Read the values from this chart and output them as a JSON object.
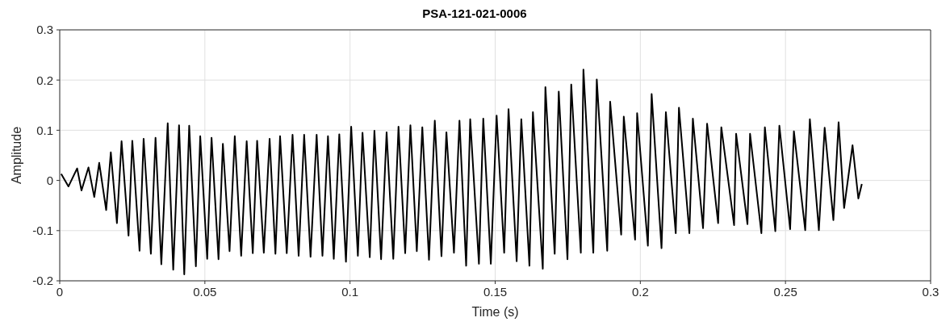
{
  "chart_data": {
    "type": "line",
    "title": "PSA-121-021-0006",
    "xlabel": "Time (s)",
    "ylabel": "Amplitude",
    "xlim": [
      0,
      0.3
    ],
    "xticks": [
      0,
      0.05,
      0.1,
      0.15,
      0.2,
      0.25,
      0.3
    ],
    "ylim": [
      -0.2,
      0.3
    ],
    "yticks": [
      -0.2,
      -0.1,
      0,
      0.1,
      0.2,
      0.3
    ],
    "grid": true,
    "marker": "none",
    "line_style": "solid",
    "series": [
      {
        "color": "#000000",
        "x": [
          0.0005,
          0.003,
          0.006,
          0.0075,
          0.0099,
          0.0119,
          0.0136,
          0.016,
          0.0176,
          0.0197,
          0.0213,
          0.0237,
          0.025,
          0.0275,
          0.0289,
          0.0314,
          0.033,
          0.035,
          0.0372,
          0.0391,
          0.0411,
          0.0429,
          0.0446,
          0.0469,
          0.0484,
          0.0508,
          0.0523,
          0.0547,
          0.0562,
          0.0585,
          0.0603,
          0.0625,
          0.0644,
          0.0665,
          0.068,
          0.0703,
          0.0723,
          0.0743,
          0.0759,
          0.0782,
          0.0802,
          0.0823,
          0.0842,
          0.0864,
          0.0885,
          0.0905,
          0.0924,
          0.0944,
          0.0963,
          0.0986,
          0.1004,
          0.1027,
          0.1043,
          0.1068,
          0.1084,
          0.1107,
          0.1126,
          0.1149,
          0.1167,
          0.119,
          0.1208,
          0.123,
          0.1249,
          0.1272,
          0.1292,
          0.1315,
          0.1332,
          0.1358,
          0.1377,
          0.14,
          0.1414,
          0.1444,
          0.1459,
          0.1485,
          0.1505,
          0.1531,
          0.1546,
          0.1574,
          0.159,
          0.1618,
          0.163,
          0.1664,
          0.1673,
          0.1705,
          0.1719,
          0.1749,
          0.1762,
          0.1795,
          0.1804,
          0.1838,
          0.185,
          0.1886,
          0.1896,
          0.1934,
          0.1943,
          0.1982,
          0.1989,
          0.2026,
          0.2039,
          0.2073,
          0.2088,
          0.2122,
          0.2133,
          0.2169,
          0.2181,
          0.2216,
          0.223,
          0.2268,
          0.2279,
          0.2323,
          0.233,
          0.2369,
          0.2378,
          0.2417,
          0.2429,
          0.2465,
          0.2479,
          0.2516,
          0.2529,
          0.2568,
          0.2584,
          0.2615,
          0.2635,
          0.2665,
          0.2683,
          0.2702,
          0.2731,
          0.2751,
          0.2763
        ],
        "values": [
          0.013,
          -0.012,
          0.024,
          -0.02,
          0.026,
          -0.033,
          0.035,
          -0.059,
          0.056,
          -0.085,
          0.078,
          -0.11,
          0.079,
          -0.14,
          0.083,
          -0.146,
          0.085,
          -0.167,
          0.114,
          -0.178,
          0.11,
          -0.187,
          0.109,
          -0.171,
          0.088,
          -0.156,
          0.085,
          -0.157,
          0.073,
          -0.141,
          0.088,
          -0.15,
          0.078,
          -0.145,
          0.079,
          -0.144,
          0.083,
          -0.146,
          0.088,
          -0.145,
          0.091,
          -0.15,
          0.091,
          -0.152,
          0.091,
          -0.15,
          0.088,
          -0.156,
          0.092,
          -0.162,
          0.107,
          -0.15,
          0.095,
          -0.153,
          0.099,
          -0.157,
          0.096,
          -0.156,
          0.107,
          -0.145,
          0.11,
          -0.141,
          0.106,
          -0.158,
          0.119,
          -0.151,
          0.096,
          -0.144,
          0.119,
          -0.17,
          0.122,
          -0.166,
          0.123,
          -0.166,
          0.129,
          -0.144,
          0.142,
          -0.161,
          0.122,
          -0.17,
          0.136,
          -0.176,
          0.186,
          -0.146,
          0.177,
          -0.157,
          0.191,
          -0.144,
          0.221,
          -0.144,
          0.201,
          -0.14,
          0.157,
          -0.108,
          0.127,
          -0.118,
          0.134,
          -0.13,
          0.172,
          -0.135,
          0.136,
          -0.105,
          0.145,
          -0.105,
          0.123,
          -0.095,
          0.113,
          -0.085,
          0.106,
          -0.089,
          0.093,
          -0.087,
          0.093,
          -0.105,
          0.106,
          -0.101,
          0.109,
          -0.097,
          0.098,
          -0.099,
          0.122,
          -0.099,
          0.105,
          -0.079,
          0.116,
          -0.055,
          0.07,
          -0.036,
          -0.007
        ]
      }
    ]
  }
}
